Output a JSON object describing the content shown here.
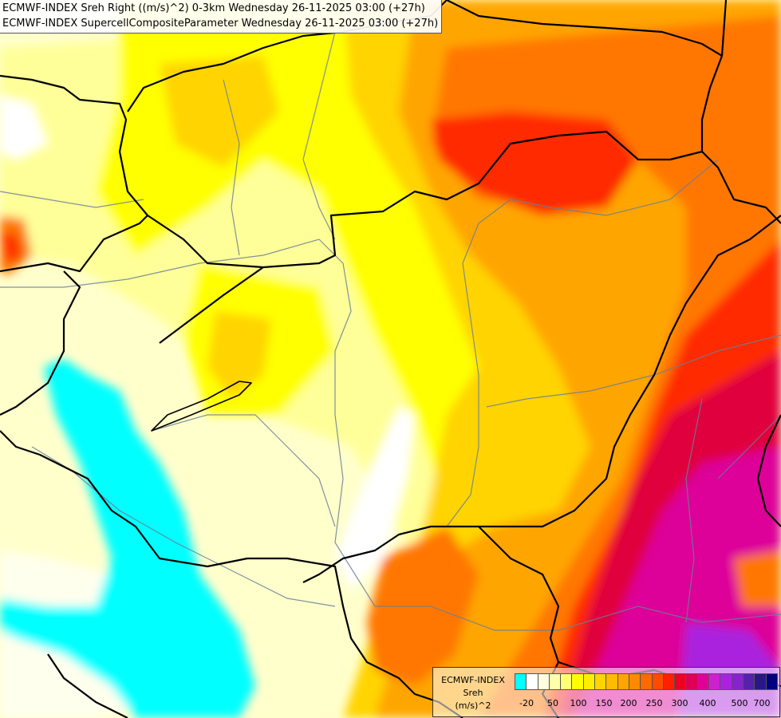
{
  "header": {
    "line1": "ECMWF-INDEX Sreh Right ((m/s)^2) 0-3km Wednesday 26-11-2025 03:00 (+27h)",
    "line2": "ECMWF-INDEX SupercellCompositeParameter Wednesday 26-11-2025 03:00 (+27h)"
  },
  "legend": {
    "line1": "ECMWF-INDEX",
    "line2": "Sreh",
    "line3": "(m/s)^2",
    "colors": [
      "#00ffff",
      "#ffffff",
      "#ffffdd",
      "#ffffaa",
      "#ffff77",
      "#ffff00",
      "#ffee00",
      "#ffd400",
      "#ffbb00",
      "#ffa500",
      "#ff8a00",
      "#ff6a00",
      "#ff4a00",
      "#ff2000",
      "#ee0022",
      "#dd0055",
      "#e00099",
      "#cc22cc",
      "#aa22dd",
      "#8822cc",
      "#5522aa",
      "#2a1688",
      "#000080"
    ],
    "ticks": [
      "-20",
      "50",
      "100",
      "150",
      "200",
      "250",
      "300",
      "400",
      "500",
      "700"
    ]
  },
  "map": {
    "field_colors": {
      "cyan": "#00ffff",
      "white": "#ffffff",
      "pale": "#ffffcc",
      "light_yellow": "#ffff99",
      "yellow": "#ffff00",
      "gold": "#ffd400",
      "orange": "#ffa500",
      "dark_orange": "#ff7700",
      "red": "#ff2a00",
      "crimson": "#e0003c",
      "magenta": "#dd0099",
      "purple": "#aa22dd"
    },
    "border_color": "#000000",
    "river_color": "#6a7f96"
  }
}
